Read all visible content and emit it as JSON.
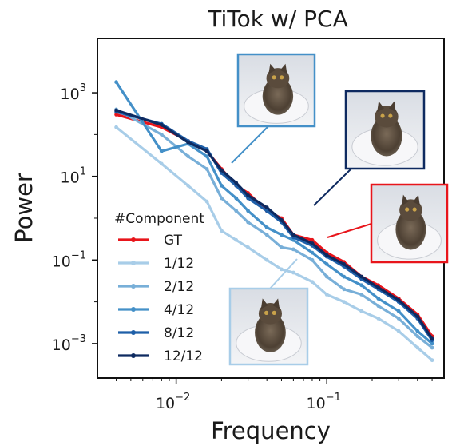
{
  "chart_data": {
    "type": "line",
    "title": "TiTok w/ PCA",
    "xlabel": "Frequency",
    "ylabel": "Power",
    "xscale": "log",
    "yscale": "log",
    "xlim": [
      0.003,
      0.6
    ],
    "ylim": [
      0.00015,
      20000
    ],
    "x_ticks": [
      {
        "value": 0.01,
        "base": "10",
        "exp": "−2"
      },
      {
        "value": 0.1,
        "base": "10",
        "exp": "−1"
      }
    ],
    "y_ticks": [
      {
        "value": 1000,
        "base": "10",
        "exp": "3"
      },
      {
        "value": 10,
        "base": "10",
        "exp": "1"
      },
      {
        "value": 0.1,
        "base": "10",
        "exp": "−1"
      },
      {
        "value": 0.001,
        "base": "10",
        "exp": "−3"
      }
    ],
    "grid": false,
    "legend": {
      "title": "#Component",
      "position": "center-left"
    },
    "series": [
      {
        "name": "GT",
        "color": "#e8151b",
        "points": [
          [
            0.004,
            300
          ],
          [
            0.008,
            150
          ],
          [
            0.012,
            70
          ],
          [
            0.016,
            40
          ],
          [
            0.02,
            15
          ],
          [
            0.025,
            6
          ],
          [
            0.03,
            4
          ],
          [
            0.04,
            1.5
          ],
          [
            0.05,
            1.0
          ],
          [
            0.06,
            0.4
          ],
          [
            0.08,
            0.3
          ],
          [
            0.1,
            0.15
          ],
          [
            0.13,
            0.09
          ],
          [
            0.17,
            0.04
          ],
          [
            0.22,
            0.025
          ],
          [
            0.3,
            0.012
          ],
          [
            0.4,
            0.005
          ],
          [
            0.5,
            0.0015
          ]
        ]
      },
      {
        "name": "1/12",
        "color": "#a8cde8",
        "points": [
          [
            0.004,
            150
          ],
          [
            0.008,
            20
          ],
          [
            0.012,
            6
          ],
          [
            0.016,
            2.5
          ],
          [
            0.02,
            0.5
          ],
          [
            0.025,
            0.3
          ],
          [
            0.03,
            0.2
          ],
          [
            0.04,
            0.1
          ],
          [
            0.05,
            0.06
          ],
          [
            0.06,
            0.05
          ],
          [
            0.08,
            0.03
          ],
          [
            0.1,
            0.015
          ],
          [
            0.13,
            0.01
          ],
          [
            0.17,
            0.006
          ],
          [
            0.22,
            0.004
          ],
          [
            0.3,
            0.002
          ],
          [
            0.4,
            0.0008
          ],
          [
            0.5,
            0.0004
          ]
        ]
      },
      {
        "name": "2/12",
        "color": "#78afd8",
        "points": [
          [
            0.004,
            400
          ],
          [
            0.008,
            100
          ],
          [
            0.012,
            30
          ],
          [
            0.016,
            15
          ],
          [
            0.02,
            3
          ],
          [
            0.025,
            1.5
          ],
          [
            0.03,
            0.8
          ],
          [
            0.04,
            0.4
          ],
          [
            0.05,
            0.2
          ],
          [
            0.06,
            0.18
          ],
          [
            0.08,
            0.1
          ],
          [
            0.1,
            0.04
          ],
          [
            0.13,
            0.02
          ],
          [
            0.17,
            0.015
          ],
          [
            0.22,
            0.008
          ],
          [
            0.3,
            0.004
          ],
          [
            0.4,
            0.0015
          ],
          [
            0.5,
            0.0008
          ]
        ]
      },
      {
        "name": "4/12",
        "color": "#4490c8",
        "points": [
          [
            0.004,
            1800
          ],
          [
            0.008,
            40
          ],
          [
            0.012,
            60
          ],
          [
            0.016,
            30
          ],
          [
            0.02,
            6
          ],
          [
            0.025,
            3
          ],
          [
            0.03,
            1.5
          ],
          [
            0.04,
            0.6
          ],
          [
            0.05,
            0.4
          ],
          [
            0.06,
            0.3
          ],
          [
            0.08,
            0.15
          ],
          [
            0.1,
            0.08
          ],
          [
            0.13,
            0.04
          ],
          [
            0.17,
            0.025
          ],
          [
            0.22,
            0.012
          ],
          [
            0.3,
            0.006
          ],
          [
            0.4,
            0.002
          ],
          [
            0.5,
            0.001
          ]
        ]
      },
      {
        "name": "8/12",
        "color": "#1e5fa8",
        "points": [
          [
            0.004,
            350
          ],
          [
            0.008,
            180
          ],
          [
            0.012,
            70
          ],
          [
            0.016,
            45
          ],
          [
            0.02,
            12
          ],
          [
            0.025,
            6
          ],
          [
            0.03,
            3
          ],
          [
            0.04,
            1.5
          ],
          [
            0.05,
            0.8
          ],
          [
            0.06,
            0.35
          ],
          [
            0.08,
            0.22
          ],
          [
            0.1,
            0.12
          ],
          [
            0.13,
            0.07
          ],
          [
            0.17,
            0.035
          ],
          [
            0.22,
            0.02
          ],
          [
            0.3,
            0.01
          ],
          [
            0.4,
            0.004
          ],
          [
            0.5,
            0.0012
          ]
        ]
      },
      {
        "name": "12/12",
        "color": "#0e2a60",
        "points": [
          [
            0.004,
            380
          ],
          [
            0.008,
            170
          ],
          [
            0.012,
            65
          ],
          [
            0.016,
            40
          ],
          [
            0.02,
            14
          ],
          [
            0.025,
            7
          ],
          [
            0.03,
            3.5
          ],
          [
            0.04,
            1.8
          ],
          [
            0.05,
            0.9
          ],
          [
            0.06,
            0.4
          ],
          [
            0.08,
            0.25
          ],
          [
            0.1,
            0.13
          ],
          [
            0.13,
            0.08
          ],
          [
            0.17,
            0.04
          ],
          [
            0.22,
            0.022
          ],
          [
            0.3,
            0.011
          ],
          [
            0.4,
            0.0045
          ],
          [
            0.5,
            0.0013
          ]
        ]
      }
    ],
    "insets": [
      {
        "subject": "cat",
        "series": "4/12",
        "border": "#4490c8"
      },
      {
        "subject": "cat",
        "series": "12/12",
        "border": "#0e2a60"
      },
      {
        "subject": "cat",
        "series": "GT",
        "border": "#e8151b"
      },
      {
        "subject": "cat",
        "series": "1/12",
        "border": "#a8cde8"
      }
    ]
  }
}
